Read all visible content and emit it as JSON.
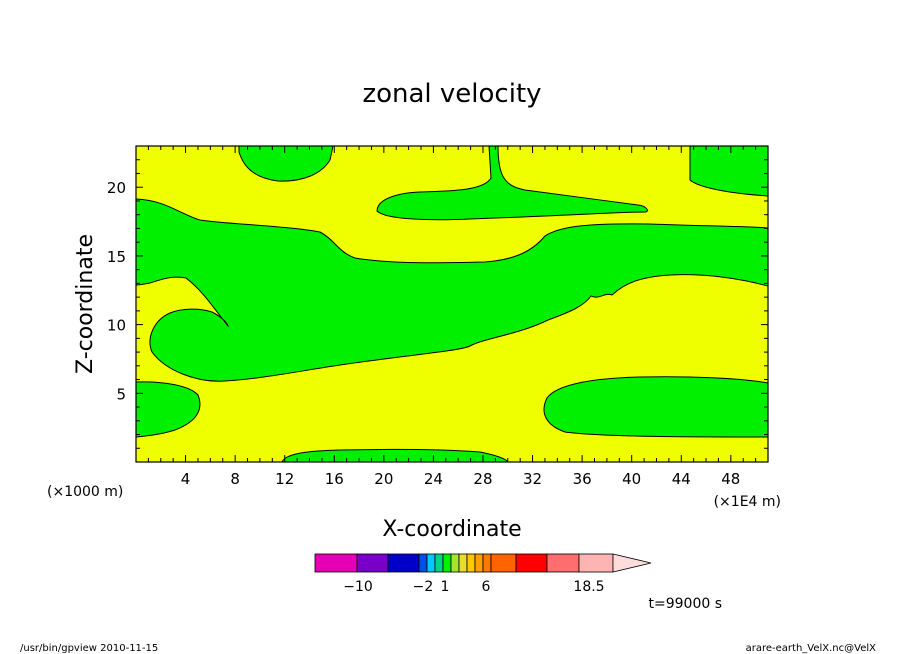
{
  "chart_data": {
    "type": "heatmap",
    "title": "zonal velocity",
    "xlabel": "X-coordinate",
    "ylabel": "Z-coordinate",
    "x_unit_left": "(×1000 m)",
    "x_unit_right": "(×1E4 m)",
    "xlim": [
      0,
      51
    ],
    "ylim": [
      0,
      23
    ],
    "x_ticks": [
      4,
      8,
      12,
      16,
      20,
      24,
      28,
      32,
      36,
      40,
      44,
      48
    ],
    "y_ticks": [
      5,
      10,
      15,
      20
    ],
    "x_tick_labels": [
      "4",
      "8",
      "12",
      "16",
      "20",
      "24",
      "28",
      "32",
      "36",
      "40",
      "44",
      "48"
    ],
    "y_tick_labels": [
      "5",
      "10",
      "15",
      "20"
    ],
    "grid": false,
    "regions": [
      {
        "value_range": "1 to 2",
        "color": "#f0ff00",
        "role": "background"
      },
      {
        "value_range": "-1 to 1",
        "color": "#00f000",
        "role": "contour-filled"
      }
    ],
    "colorbar": {
      "levels": [
        -14,
        -12,
        -10,
        -8,
        -4,
        -3,
        -2,
        -1,
        1,
        2,
        3,
        4,
        5,
        6,
        9,
        12,
        15,
        18.5
      ],
      "colors": [
        "#e600b4",
        "#7800c8",
        "#0000c8",
        "#0050e6",
        "#00c8ff",
        "#00d28c",
        "#00f000",
        "#a0e632",
        "#e6dc32",
        "#ffc800",
        "#ffa000",
        "#ff7800",
        "#ff6400",
        "#ff0000",
        "#ff6e6e",
        "#ffb4b4",
        "#ffdcdc"
      ],
      "labels": [
        "−10",
        "−2",
        "1",
        "6",
        "18.5"
      ]
    },
    "time_label": "t=99000 s"
  },
  "footer": {
    "left": "/usr/bin/gpview   2010-11-15",
    "right": "arare-earth_VelX.nc@VelX"
  }
}
